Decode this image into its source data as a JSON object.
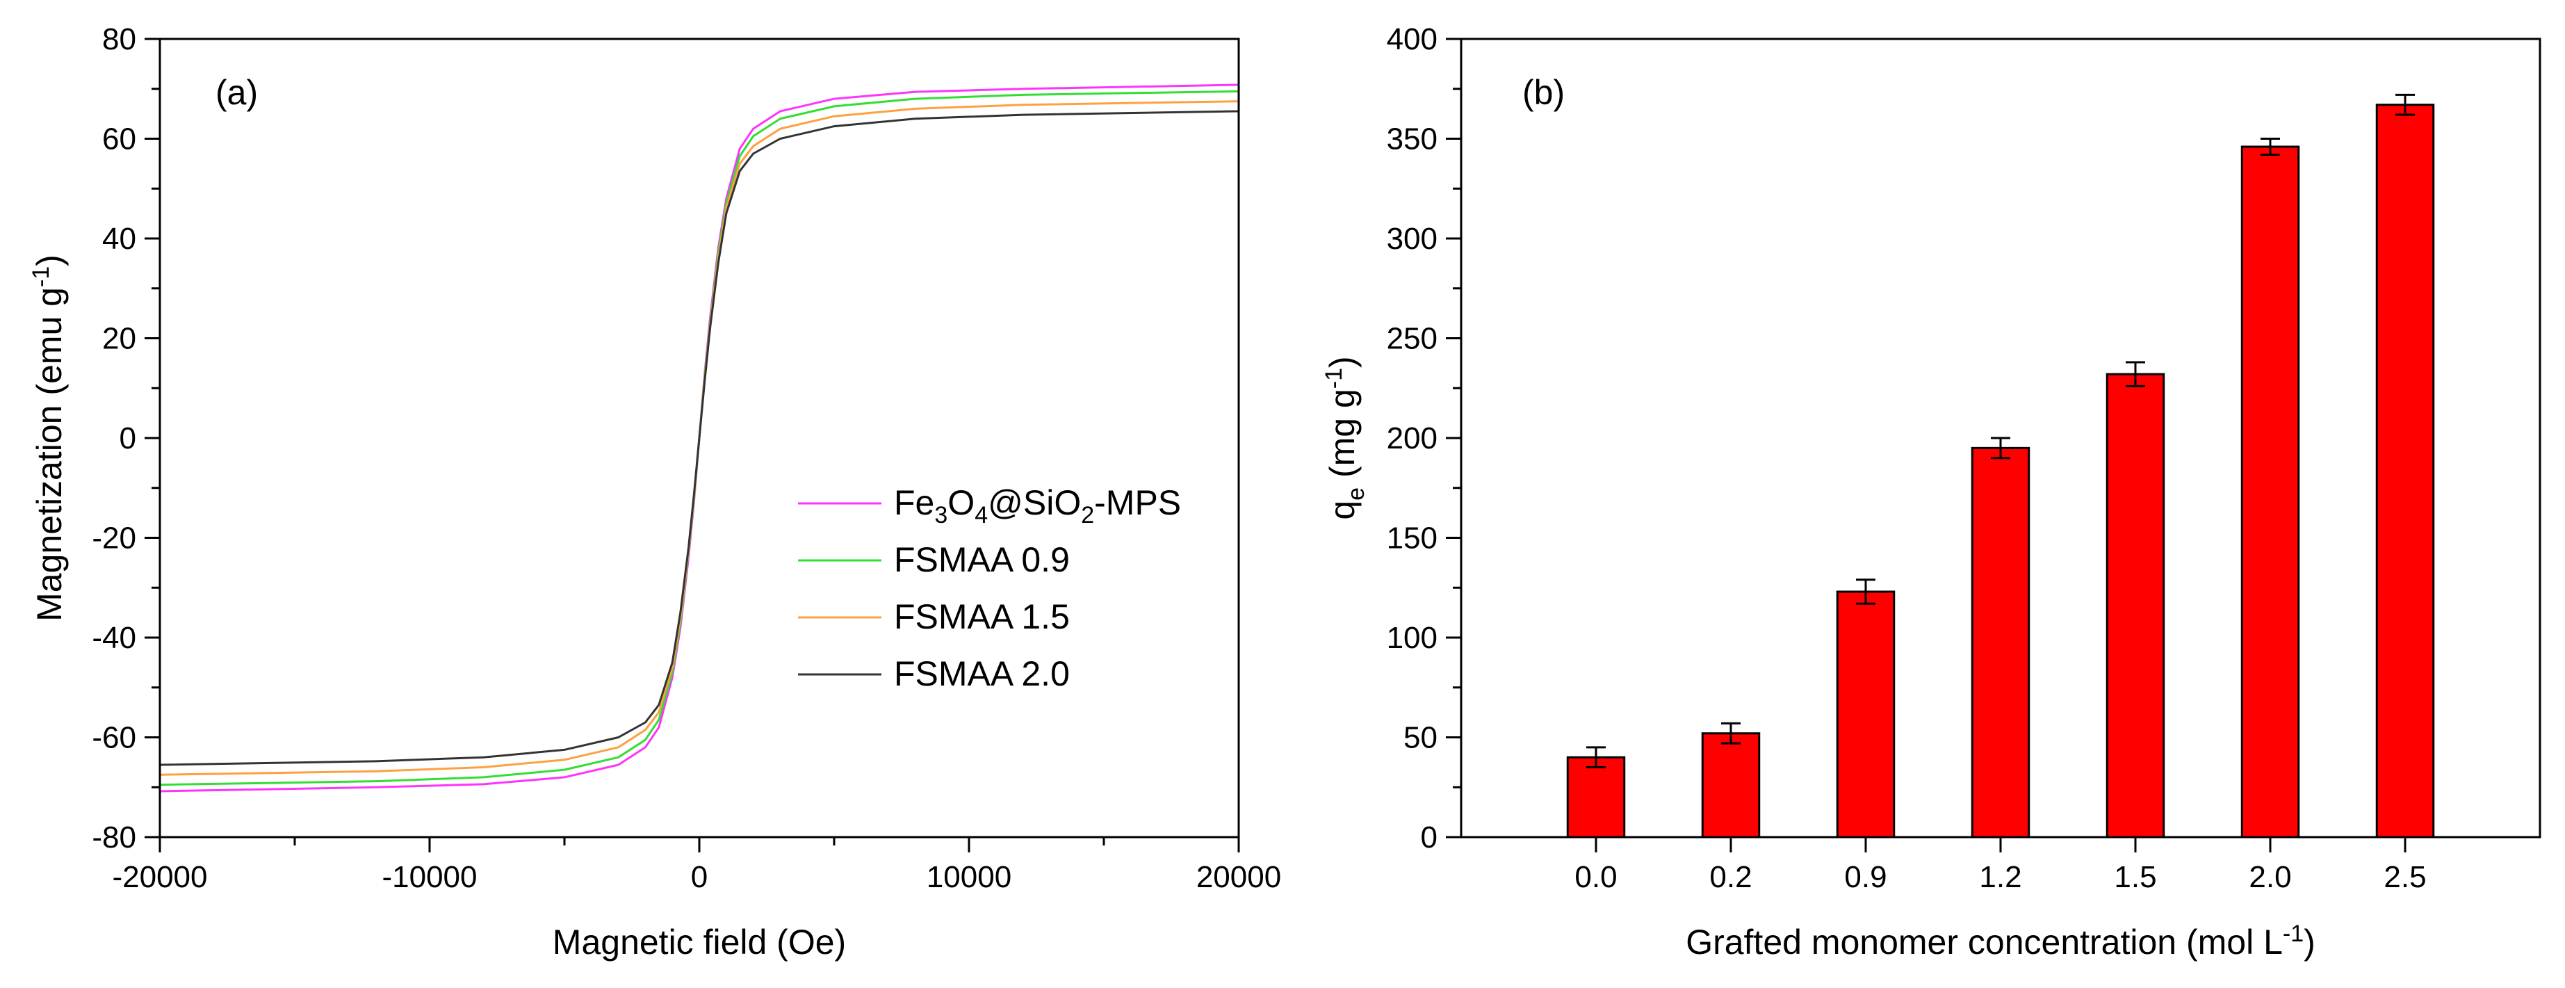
{
  "chart_data": [
    {
      "type": "line",
      "panel_label": "(a)",
      "xlabel": "Magnetic field (Oe)",
      "ylabel": {
        "main": "Magnetization (emu g",
        "sup": "-1",
        "close": ")"
      },
      "xlim": [
        -20000,
        20000
      ],
      "ylim": [
        -80,
        80
      ],
      "xticks": [
        -20000,
        -10000,
        0,
        10000,
        20000
      ],
      "xtick_labels": [
        "-20000",
        "-10000",
        "0",
        "10000",
        "20000"
      ],
      "yticks": [
        -80,
        -60,
        -40,
        -20,
        0,
        20,
        40,
        60,
        80
      ],
      "ytick_labels": [
        "-80",
        "-60",
        "-40",
        "-20",
        "0",
        "20",
        "40",
        "60",
        "80"
      ],
      "legend_position": "center-right",
      "series": [
        {
          "name": "Fe3O4@SiO2-MPS",
          "legend_parts": [
            [
              "Fe",
              ""
            ],
            [
              "3",
              "sub"
            ],
            [
              "O",
              ""
            ],
            [
              "4",
              "sub"
            ],
            [
              "@SiO",
              ""
            ],
            [
              "2",
              "sub"
            ],
            [
              "-MPS",
              ""
            ]
          ],
          "color": "#ff33ff",
          "x": [
            -20000,
            -12000,
            -8000,
            -5000,
            -3000,
            -2000,
            -1500,
            -1000,
            -700,
            -400,
            -200,
            0,
            200,
            400,
            700,
            1000,
            1500,
            2000,
            3000,
            5000,
            8000,
            12000,
            20000
          ],
          "y": [
            -70.8,
            -70.0,
            -69.4,
            -68.0,
            -65.5,
            -62.0,
            -58.0,
            -48.0,
            -38.0,
            -24.0,
            -13.0,
            0,
            13.0,
            24.0,
            38.0,
            48.0,
            58.0,
            62.0,
            65.5,
            68.0,
            69.4,
            70.0,
            70.8
          ]
        },
        {
          "name": "FSMAA 0.9",
          "legend_parts": [
            [
              "FSMAA 0.9",
              ""
            ]
          ],
          "color": "#33dd33",
          "x": [
            -20000,
            -12000,
            -8000,
            -5000,
            -3000,
            -2000,
            -1500,
            -1000,
            -700,
            -400,
            -200,
            0,
            200,
            400,
            700,
            1000,
            1500,
            2000,
            3000,
            5000,
            8000,
            12000,
            20000
          ],
          "y": [
            -69.5,
            -68.8,
            -68.0,
            -66.5,
            -64.0,
            -60.5,
            -56.5,
            -47.0,
            -37.0,
            -23.0,
            -12.5,
            0,
            12.5,
            23.0,
            37.0,
            47.0,
            56.5,
            60.5,
            64.0,
            66.5,
            68.0,
            68.8,
            69.5
          ]
        },
        {
          "name": "FSMAA 1.5",
          "legend_parts": [
            [
              "FSMAA 1.5",
              ""
            ]
          ],
          "color": "#ffa040",
          "x": [
            -20000,
            -12000,
            -8000,
            -5000,
            -3000,
            -2000,
            -1500,
            -1000,
            -700,
            -400,
            -200,
            0,
            200,
            400,
            700,
            1000,
            1500,
            2000,
            3000,
            5000,
            8000,
            12000,
            20000
          ],
          "y": [
            -67.5,
            -66.8,
            -66.0,
            -64.5,
            -62.0,
            -58.5,
            -55.0,
            -46.0,
            -36.0,
            -22.5,
            -12.0,
            0,
            12.0,
            22.5,
            36.0,
            46.0,
            55.0,
            58.5,
            62.0,
            64.5,
            66.0,
            66.8,
            67.5
          ]
        },
        {
          "name": "FSMAA 2.0",
          "legend_parts": [
            [
              "FSMAA 2.0",
              ""
            ]
          ],
          "color": "#333333",
          "x": [
            -20000,
            -12000,
            -8000,
            -5000,
            -3000,
            -2000,
            -1500,
            -1000,
            -700,
            -400,
            -200,
            0,
            200,
            400,
            700,
            1000,
            1500,
            2000,
            3000,
            5000,
            8000,
            12000,
            20000
          ],
          "y": [
            -65.5,
            -64.8,
            -64.0,
            -62.5,
            -60.0,
            -57.0,
            -53.5,
            -45.0,
            -35.0,
            -22.0,
            -11.5,
            0,
            11.5,
            22.0,
            35.0,
            45.0,
            53.5,
            57.0,
            60.0,
            62.5,
            64.0,
            64.8,
            65.5
          ]
        }
      ]
    },
    {
      "type": "bar",
      "panel_label": "(b)",
      "xlabel": {
        "main": "Grafted monomer concentration (mol L",
        "sup": "-1",
        "close": ")"
      },
      "ylabel": {
        "q": "q",
        "sub": "e",
        "main": " (mg g",
        "sup": "-1",
        "close": ")"
      },
      "categories": [
        "0.0",
        "0.2",
        "0.9",
        "1.2",
        "1.5",
        "2.0",
        "2.5"
      ],
      "values": [
        40,
        52,
        123,
        195,
        232,
        346,
        367
      ],
      "errors": [
        5,
        5,
        6,
        5,
        6,
        4,
        5
      ],
      "bar_color": "#ff0000",
      "ylim": [
        0,
        400
      ],
      "yticks": [
        0,
        50,
        100,
        150,
        200,
        250,
        300,
        350,
        400
      ],
      "ytick_labels": [
        "0",
        "50",
        "100",
        "150",
        "200",
        "250",
        "300",
        "350",
        "400"
      ]
    }
  ]
}
